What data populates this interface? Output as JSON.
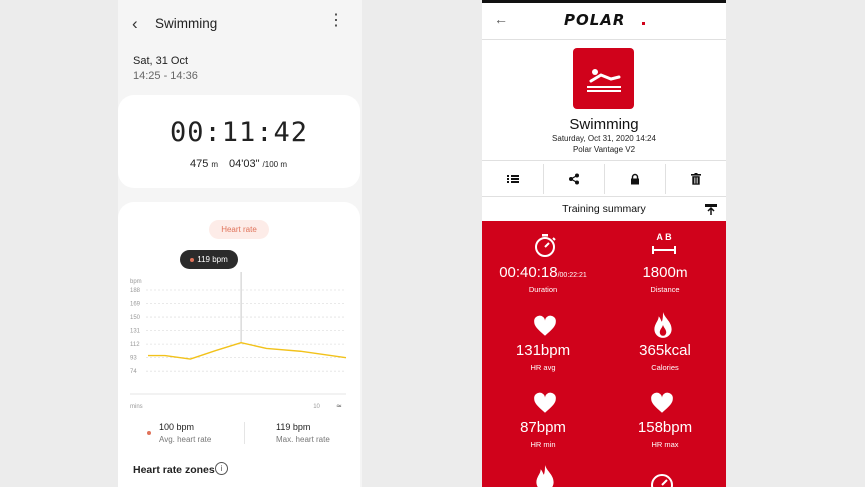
{
  "samsung": {
    "title": "Swimming",
    "date": "Sat, 31 Oct",
    "time_range": "14:25 - 14:36",
    "timer": "00:11:42",
    "distance_value": "475",
    "distance_unit": "m",
    "pace_value": "04'03\"",
    "pace_unit": "/100 m",
    "hr_pill": "Heart rate",
    "tooltip": "119 bpm",
    "stats": {
      "avg_value": "100 bpm",
      "avg_label": "Avg. heart rate",
      "max_value": "119 bpm",
      "max_label": "Max. heart rate"
    },
    "zones_label": "Heart rate zones",
    "zones_info": "i"
  },
  "chart_data": {
    "type": "line",
    "title": "",
    "xlabel": "mins",
    "ylabel": "bpm",
    "ylim": [
      56,
      188
    ],
    "xlim": [
      0,
      11.7
    ],
    "x_ticks": [
      "10"
    ],
    "y_ticks": [
      "188",
      "169",
      "150",
      "131",
      "112",
      "93",
      "74"
    ],
    "series": [
      {
        "x": [
          0,
          1,
          2.5,
          4,
          5.5,
          7,
          9,
          11.7
        ],
        "values": [
          96,
          96,
          91,
          103,
          114,
          106,
          102,
          93
        ]
      }
    ],
    "highlight": {
      "x": 5.5,
      "value": 119
    },
    "color": "#f2c21b",
    "grid": true
  },
  "polar": {
    "logo": "POLAR",
    "title": "Swimming",
    "datetime": "Saturday, Oct 31, 2020 14:24",
    "device": "Polar Vantage V2",
    "summary_title": "Training summary",
    "accent": "#d0021b",
    "metrics": {
      "duration_value": "00:40:18",
      "duration_extra": "/00:22:21",
      "duration_label": "Duration",
      "distance_value": "1800",
      "distance_unit": "m",
      "distance_label": "Distance",
      "distance_icon_text": "A  B",
      "hravg_value": "131",
      "hravg_unit": "bpm",
      "hravg_label": "HR avg",
      "calories_value": "365",
      "calories_unit": "kcal",
      "calories_label": "Calories",
      "hrmin_value": "87",
      "hrmin_unit": "bpm",
      "hrmin_label": "HR min",
      "hrmax_value": "158",
      "hrmax_unit": "bpm",
      "hrmax_label": "HR max"
    }
  }
}
